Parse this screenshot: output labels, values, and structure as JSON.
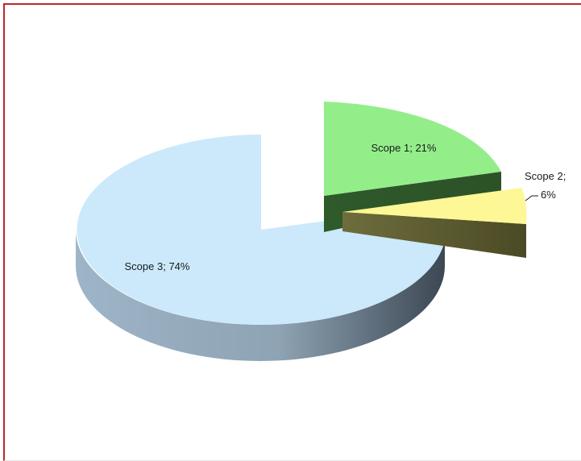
{
  "chart_data": {
    "type": "pie",
    "style": "3d-exploded",
    "title": "",
    "legend": "none",
    "slices": [
      {
        "name": "Scope 1",
        "value": 21,
        "label": "Scope 1; 21%",
        "top_color": "#93ee8a",
        "side_color": "#3f6f3a"
      },
      {
        "name": "Scope 2",
        "value": 6,
        "label_line1": "Scope 2;",
        "label_line2": "6%",
        "top_color": "#fdf795",
        "side_color": "#6e6a3a"
      },
      {
        "name": "Scope 3",
        "value": 74,
        "label": "Scope 3; 74%",
        "top_color": "#cbe9fa",
        "side_color": "#7f97a8"
      }
    ]
  }
}
